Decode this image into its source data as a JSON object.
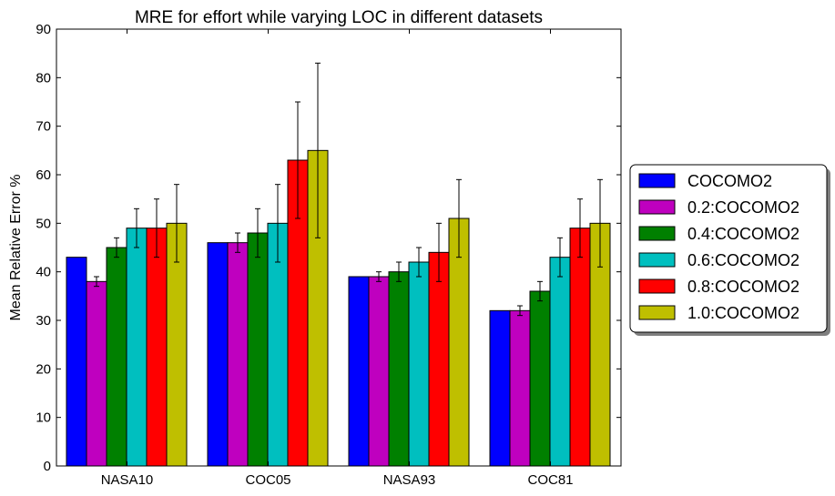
{
  "chart_data": {
    "type": "bar",
    "title": "MRE for effort while varying LOC in different datasets",
    "xlabel": "",
    "ylabel": "Mean Relative Error %",
    "ylim": [
      0,
      90
    ],
    "yticks": [
      0,
      10,
      20,
      30,
      40,
      50,
      60,
      70,
      80,
      90
    ],
    "categories": [
      "NASA10",
      "COC05",
      "NASA93",
      "COC81"
    ],
    "series": [
      {
        "name": "COCOMO2",
        "color": "#0000ff",
        "values": [
          43,
          46,
          39,
          32
        ],
        "errors": [
          0,
          0,
          0,
          0
        ]
      },
      {
        "name": "0.2:COCOMO2",
        "color": "#bf00bf",
        "values": [
          38,
          46,
          39,
          32
        ],
        "errors": [
          1,
          2,
          1,
          1
        ]
      },
      {
        "name": "0.4:COCOMO2",
        "color": "#008000",
        "values": [
          45,
          48,
          40,
          36
        ],
        "errors": [
          2,
          5,
          2,
          2
        ]
      },
      {
        "name": "0.6:COCOMO2",
        "color": "#00bfbf",
        "values": [
          49,
          50,
          42,
          43
        ],
        "errors": [
          4,
          8,
          3,
          4
        ]
      },
      {
        "name": "0.8:COCOMO2",
        "color": "#ff0000",
        "values": [
          49,
          63,
          44,
          49
        ],
        "errors": [
          6,
          12,
          6,
          6
        ]
      },
      {
        "name": "1.0:COCOMO2",
        "color": "#bfbf00",
        "values": [
          50,
          65,
          51,
          50
        ],
        "errors": [
          8,
          18,
          8,
          9
        ]
      }
    ],
    "legend_position": "right"
  }
}
